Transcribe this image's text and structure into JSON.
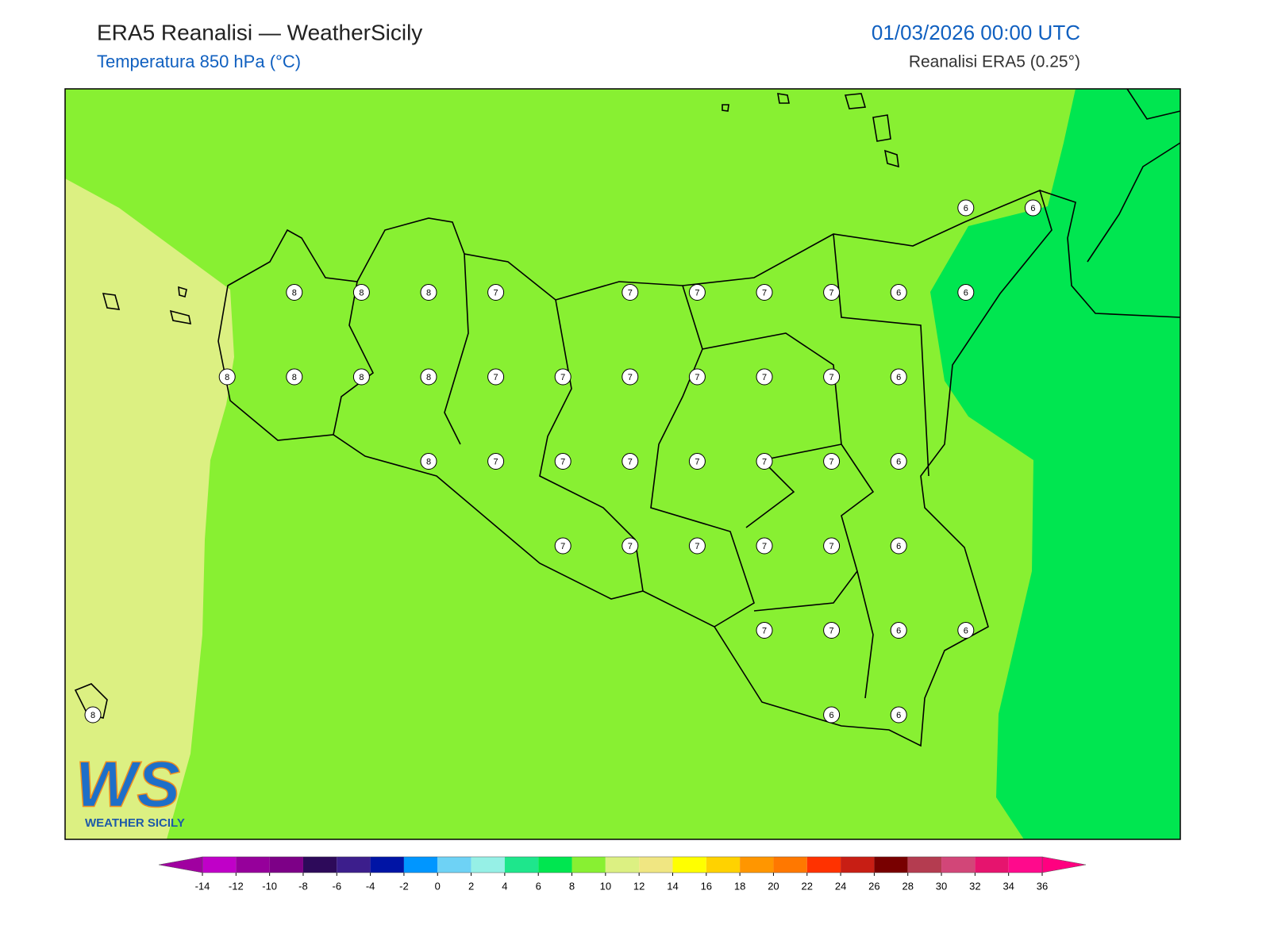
{
  "header": {
    "title": "ERA5 Reanalisi — WeatherSicily",
    "subtitle": "Temperatura 850 hPa (°C)",
    "datetime": "01/03/2026 00:00 UTC",
    "source": "Reanalisi ERA5 (0.25°)"
  },
  "map": {
    "stations": [
      6,
      6,
      8,
      8,
      8,
      7,
      7,
      7,
      7,
      7,
      6,
      6,
      8,
      8,
      8,
      8,
      7,
      7,
      7,
      7,
      7,
      7,
      6,
      8,
      7,
      7,
      7,
      7,
      7,
      7,
      6,
      7,
      7,
      7,
      7,
      7,
      6,
      7,
      7,
      6,
      6,
      8,
      6,
      6
    ]
  },
  "logo": {
    "mark": "WS",
    "name": "WEATHER SICILY"
  },
  "colorbar": {
    "ticks": [
      -14,
      -12,
      -10,
      -8,
      -6,
      -4,
      -2,
      0,
      2,
      4,
      6,
      8,
      10,
      12,
      14,
      16,
      18,
      20,
      22,
      24,
      26,
      28,
      30,
      32,
      34,
      36
    ],
    "colors": [
      "#c000c8",
      "#96009b",
      "#7d0087",
      "#2d0a5a",
      "#3c1e8c",
      "#0014a5",
      "#0096ff",
      "#6ed2f5",
      "#96f0e6",
      "#1ee68c",
      "#00e650",
      "#88f032",
      "#dcf082",
      "#f0e682",
      "#ffff00",
      "#ffd200",
      "#ff9600",
      "#ff7800",
      "#ff3200",
      "#c81e14",
      "#780000",
      "#b43c50",
      "#d24678",
      "#e6146e",
      "#ff0a8c"
    ],
    "under_color": "#a000a0",
    "over_color": "#ff0080"
  }
}
